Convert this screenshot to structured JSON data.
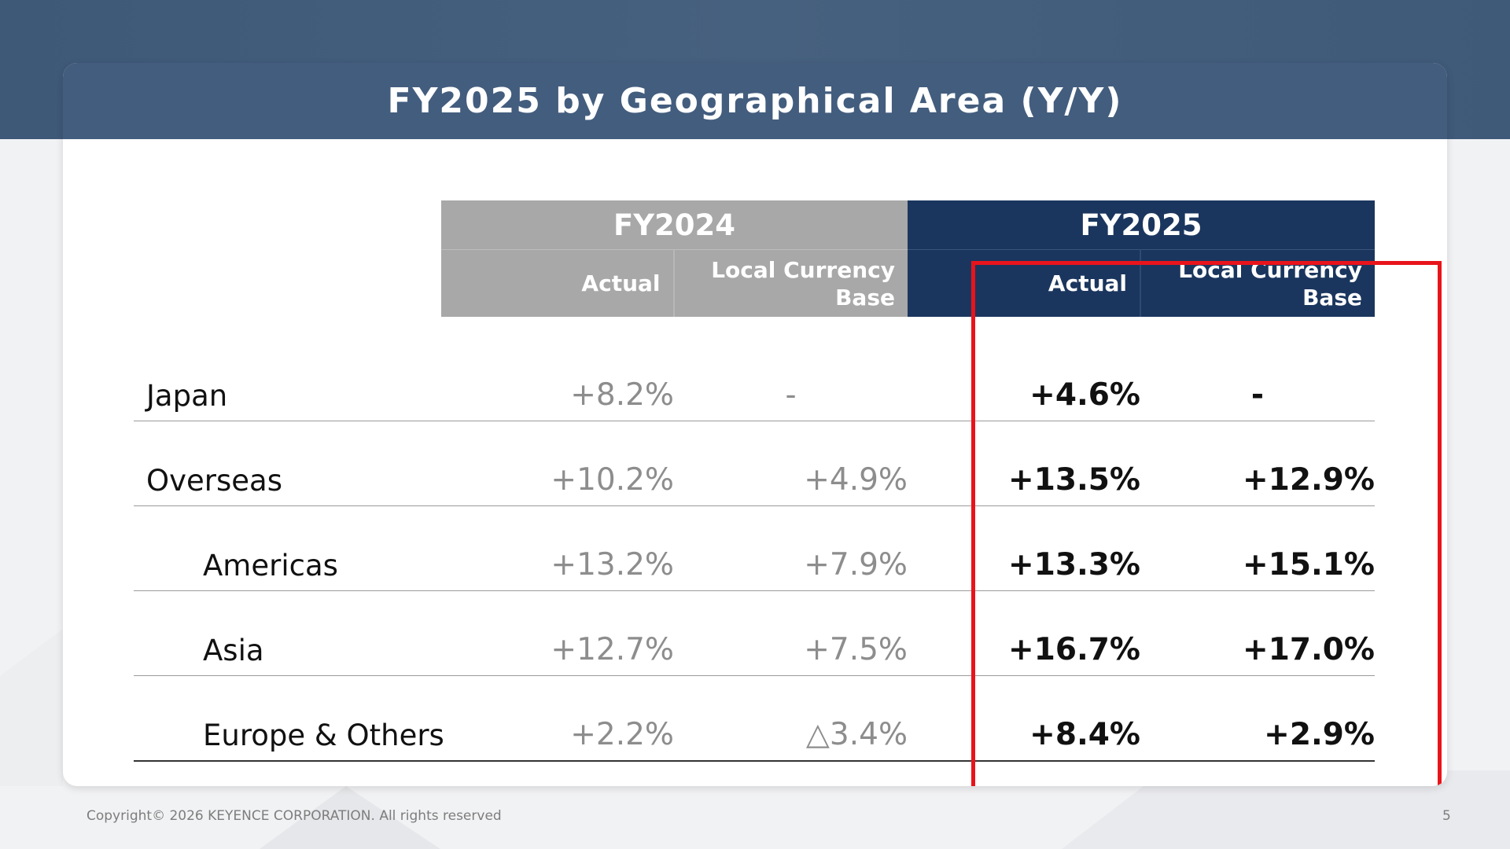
{
  "title": "FY2025 by Geographical Area (Y/Y)",
  "header": {
    "fy2024": {
      "year": "FY2024",
      "actual": "Actual",
      "local_line1": "Local Currency",
      "local_line2": "Base"
    },
    "fy2025": {
      "year": "FY2025",
      "actual": "Actual",
      "local_line1": "Local Currency",
      "local_line2": "Base"
    }
  },
  "rows": [
    {
      "label": "Japan",
      "fy2024_actual": "+8.2%",
      "fy2024_local": "-",
      "fy2025_actual": "+4.6%",
      "fy2025_local": "-"
    },
    {
      "label": "Overseas",
      "fy2024_actual": "+10.2%",
      "fy2024_local": "+4.9%",
      "fy2025_actual": "+13.5%",
      "fy2025_local": "+12.9%"
    },
    {
      "label": "Americas",
      "fy2024_actual": "+13.2%",
      "fy2024_local": "+7.9%",
      "fy2025_actual": "+13.3%",
      "fy2025_local": "+15.1%"
    },
    {
      "label": "Asia",
      "fy2024_actual": "+12.7%",
      "fy2024_local": "+7.5%",
      "fy2025_actual": "+16.7%",
      "fy2025_local": "+17.0%"
    },
    {
      "label": "Europe & Others",
      "fy2024_actual": "+2.2%",
      "fy2024_local": "△3.4%",
      "fy2025_actual": "+8.4%",
      "fy2025_local": "+2.9%"
    }
  ],
  "footer": {
    "copyright": "Copyright© 2026 KEYENCE CORPORATION. All rights reserved",
    "page": "5"
  },
  "colors": {
    "title_bar": "#435d7e",
    "fy2024_header": "#a8a8a8",
    "fy2025_header": "#1b365e",
    "highlight": "#e8141b"
  }
}
